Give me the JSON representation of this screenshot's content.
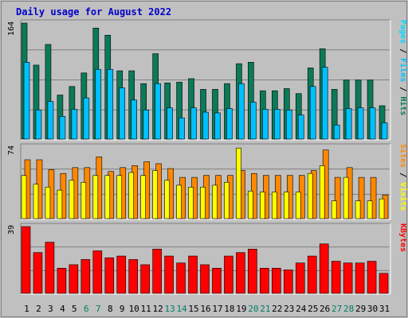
{
  "title": "Daily usage for August 2022",
  "colors": {
    "frame_bg": "#c0c0c0",
    "plot_bg": "#c0c0c0",
    "gridline": "#808080",
    "title": "#0000cc",
    "hits": "#0a7a58",
    "files": "#00c0ff",
    "pages": "#00d8ff",
    "visits": "#ff8800",
    "sites": "#ffff00",
    "kbytes": "#ff0000",
    "weekday_label": "#000000",
    "weekend_label": "#008060",
    "sep": "#000000"
  },
  "chart_data": [
    {
      "type": "bar",
      "name": "pages-files-hits",
      "ylabel_parts": [
        "Pages",
        "Files",
        "Hits"
      ],
      "ymax_label": "164",
      "ylim": [
        0,
        164
      ],
      "categories": [
        "1",
        "2",
        "3",
        "4",
        "5",
        "6",
        "7",
        "8",
        "9",
        "10",
        "11",
        "12",
        "13",
        "14",
        "15",
        "16",
        "17",
        "18",
        "19",
        "20",
        "21",
        "22",
        "23",
        "24",
        "25",
        "26",
        "27",
        "28",
        "29",
        "30",
        "31"
      ],
      "series": [
        {
          "name": "Hits",
          "values": [
            164,
            105,
            134,
            63,
            75,
            94,
            157,
            147,
            97,
            97,
            79,
            121,
            80,
            81,
            86,
            71,
            71,
            79,
            107,
            109,
            69,
            69,
            72,
            65,
            101,
            128,
            71,
            84,
            84,
            84,
            48
          ]
        },
        {
          "name": "Files",
          "values": [
            109,
            42,
            54,
            33,
            43,
            59,
            99,
            99,
            73,
            56,
            42,
            79,
            45,
            31,
            45,
            39,
            38,
            44,
            79,
            53,
            43,
            43,
            42,
            35,
            75,
            102,
            21,
            44,
            45,
            45,
            24
          ]
        },
        {
          "name": "Pages",
          "values": [
            0,
            0,
            0,
            0,
            0,
            0,
            0,
            0,
            0,
            0,
            0,
            0,
            0,
            0,
            0,
            0,
            0,
            0,
            0,
            0,
            0,
            0,
            0,
            0,
            0,
            0,
            0,
            0,
            0,
            0,
            0
          ]
        }
      ]
    },
    {
      "type": "bar",
      "name": "sites-visits",
      "ylabel_parts": [
        "Sites",
        "Visits"
      ],
      "ymax_label": "74",
      "ylim": [
        0,
        74
      ],
      "categories": [
        "1",
        "2",
        "3",
        "4",
        "5",
        "6",
        "7",
        "8",
        "9",
        "10",
        "11",
        "12",
        "13",
        "14",
        "15",
        "16",
        "17",
        "18",
        "19",
        "20",
        "21",
        "22",
        "23",
        "24",
        "25",
        "26",
        "27",
        "28",
        "29",
        "30",
        "31"
      ],
      "series": [
        {
          "name": "Visits",
          "values": [
            61,
            61,
            51,
            47,
            53,
            53,
            64,
            49,
            53,
            55,
            59,
            57,
            52,
            43,
            43,
            45,
            45,
            45,
            50,
            47,
            45,
            45,
            45,
            45,
            50,
            71,
            43,
            53,
            43,
            43,
            25
          ]
        },
        {
          "name": "Sites",
          "values": [
            45,
            36,
            33,
            30,
            40,
            38,
            45,
            45,
            45,
            48,
            45,
            50,
            40,
            35,
            33,
            33,
            35,
            38,
            73,
            29,
            28,
            28,
            28,
            28,
            47,
            55,
            19,
            43,
            19,
            19,
            21
          ]
        }
      ]
    },
    {
      "type": "bar",
      "name": "kbytes",
      "ylabel_parts": [
        "KBytes"
      ],
      "ymax_label": "39",
      "ylim": [
        0,
        39
      ],
      "categories": [
        "1",
        "2",
        "3",
        "4",
        "5",
        "6",
        "7",
        "8",
        "9",
        "10",
        "11",
        "12",
        "13",
        "14",
        "15",
        "16",
        "17",
        "18",
        "19",
        "20",
        "21",
        "22",
        "23",
        "24",
        "25",
        "26",
        "27",
        "28",
        "29",
        "30",
        "31"
      ],
      "series": [
        {
          "name": "KBytes",
          "values": [
            39,
            24,
            30,
            15,
            17,
            20,
            25,
            21,
            22,
            20,
            17,
            26,
            22,
            18,
            22,
            17,
            15,
            22,
            24,
            26,
            15,
            15,
            14,
            18,
            22,
            29,
            19,
            18,
            18,
            19,
            12
          ]
        }
      ]
    }
  ],
  "day_labels": [
    {
      "label": "1",
      "weekend": false
    },
    {
      "label": "2",
      "weekend": false
    },
    {
      "label": "3",
      "weekend": false
    },
    {
      "label": "4",
      "weekend": false
    },
    {
      "label": "5",
      "weekend": false
    },
    {
      "label": "6",
      "weekend": true
    },
    {
      "label": "7",
      "weekend": true
    },
    {
      "label": "8",
      "weekend": false
    },
    {
      "label": "9",
      "weekend": false
    },
    {
      "label": "10",
      "weekend": false
    },
    {
      "label": "11",
      "weekend": false
    },
    {
      "label": "12",
      "weekend": false
    },
    {
      "label": "13",
      "weekend": true
    },
    {
      "label": "14",
      "weekend": true
    },
    {
      "label": "15",
      "weekend": false
    },
    {
      "label": "16",
      "weekend": false
    },
    {
      "label": "17",
      "weekend": false
    },
    {
      "label": "18",
      "weekend": false
    },
    {
      "label": "19",
      "weekend": false
    },
    {
      "label": "20",
      "weekend": true
    },
    {
      "label": "21",
      "weekend": true
    },
    {
      "label": "22",
      "weekend": false
    },
    {
      "label": "23",
      "weekend": false
    },
    {
      "label": "24",
      "weekend": false
    },
    {
      "label": "25",
      "weekend": false
    },
    {
      "label": "26",
      "weekend": false
    },
    {
      "label": "27",
      "weekend": true
    },
    {
      "label": "28",
      "weekend": true
    },
    {
      "label": "29",
      "weekend": false
    },
    {
      "label": "30",
      "weekend": false
    },
    {
      "label": "31",
      "weekend": false
    }
  ]
}
